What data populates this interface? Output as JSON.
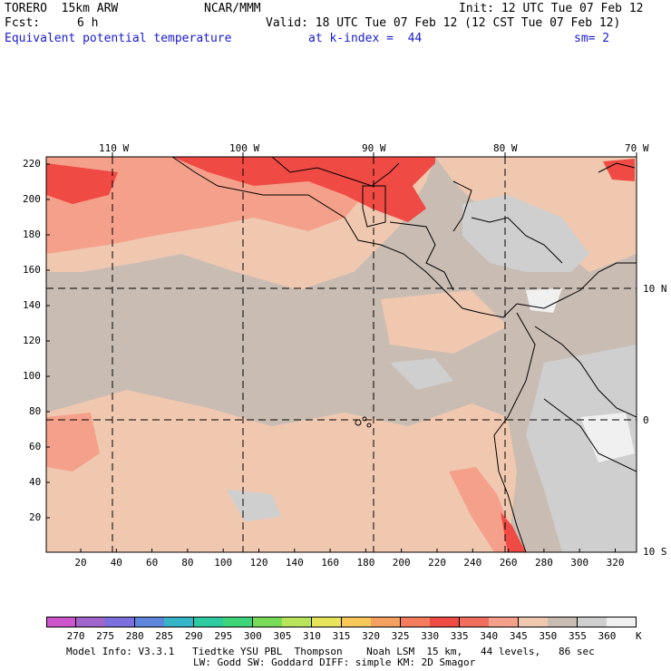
{
  "header": {
    "model": "TORERO  15km ARW",
    "org": "NCAR/MMM",
    "init": "Init: 12 UTC Tue 07 Feb 12",
    "fcst_label": "Fcst:",
    "fcst_value": "6 h",
    "valid": "Valid: 18 UTC Tue 07 Feb 12 (12 CST Tue 07 Feb 12)",
    "field": "Equivalent potential temperature",
    "level": "at k-index =  44",
    "smooth": "sm= 2"
  },
  "map": {
    "lon_labels": [
      "110 W",
      "100 W",
      "90 W",
      "80 W",
      "70 W"
    ],
    "lat_labels": [
      "10 N",
      "0",
      "10 S"
    ],
    "y_ticks": [
      "220",
      "200",
      "180",
      "160",
      "140",
      "120",
      "100",
      "80",
      "60",
      "40",
      "20"
    ],
    "x_ticks": [
      "20",
      "40",
      "60",
      "80",
      "100",
      "120",
      "140",
      "160",
      "180",
      "200",
      "220",
      "240",
      "260",
      "280",
      "300",
      "320"
    ],
    "colors": {
      "background": "#c9bcb3",
      "warm": "#f0c8b0",
      "salmon": "#f5a08a",
      "red": "#f04a45",
      "grey": "#cfcfcf",
      "white": "#f0f0f0"
    }
  },
  "colorbar": {
    "unit": "K",
    "labels": [
      "270",
      "275",
      "280",
      "285",
      "290",
      "295",
      "300",
      "305",
      "310",
      "315",
      "320",
      "325",
      "330",
      "335",
      "340",
      "345",
      "350",
      "355",
      "360"
    ],
    "colors": [
      "#cc55cc",
      "#a066cc",
      "#7b70dd",
      "#5f86dd",
      "#36b4c8",
      "#2ecba0",
      "#3dd47a",
      "#78dc5a",
      "#b7e45a",
      "#e8e45c",
      "#f8c85a",
      "#f4a060",
      "#f47c5c",
      "#f04a45",
      "#f16d5d",
      "#f5a08a",
      "#f0c8b0",
      "#c9bcb3",
      "#cfcfcf",
      "#f0f0f0"
    ]
  },
  "footer": {
    "line1": "Model Info: V3.3.1   Tiedtke YSU PBL  Thompson    Noah LSM  15 km,   44 levels,   86 sec",
    "line2": "LW: Godd SW: Goddard DIFF: simple KM: 2D Smagor"
  }
}
